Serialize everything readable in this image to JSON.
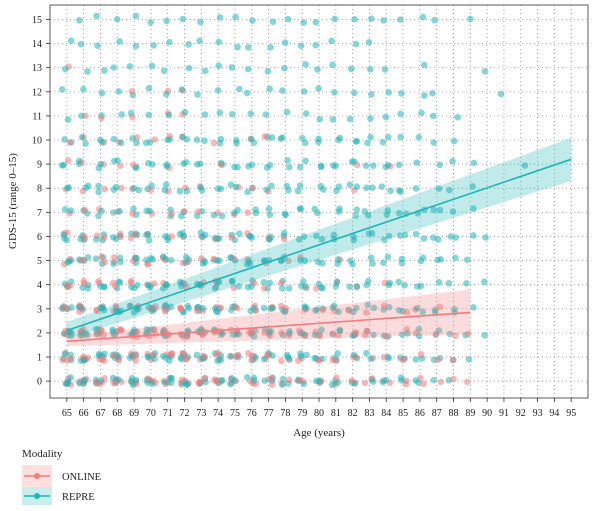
{
  "chart_data": {
    "type": "scatter",
    "xlabel": "Age (years)",
    "ylabel": "GDS-15 (range 0–15)",
    "xlim": [
      64,
      96
    ],
    "ylim": [
      -0.7,
      15.6
    ],
    "x_ticks": [
      65,
      66,
      67,
      68,
      69,
      70,
      71,
      72,
      73,
      74,
      75,
      76,
      77,
      78,
      79,
      80,
      81,
      82,
      83,
      84,
      85,
      86,
      87,
      88,
      89,
      90,
      91,
      92,
      93,
      94,
      95
    ],
    "y_ticks": [
      0,
      1,
      2,
      3,
      4,
      5,
      6,
      7,
      8,
      9,
      10,
      11,
      12,
      13,
      14,
      15
    ],
    "grid": true,
    "grid_style": "dotted",
    "legend": {
      "title": "Modality",
      "placement": "bottom-left"
    },
    "series": [
      {
        "name": "ONLINE",
        "color": "#f07c7c",
        "x_range": [
          65,
          89
        ],
        "trend": {
          "x": [
            65,
            89
          ],
          "y": [
            1.65,
            2.85
          ]
        },
        "ci_band": {
          "x": [
            65,
            89
          ],
          "lower": [
            1.45,
            1.95
          ],
          "upper": [
            1.85,
            3.8
          ]
        }
      },
      {
        "name": "REPRE",
        "color": "#1fb5b8",
        "x_range": [
          65,
          95
        ],
        "trend": {
          "x": [
            65,
            95
          ],
          "y": [
            2.1,
            9.2
          ]
        },
        "ci_band": {
          "x": [
            65,
            95
          ],
          "lower": [
            1.75,
            8.3
          ],
          "upper": [
            2.45,
            10.1
          ]
        }
      }
    ],
    "point_density": {
      "ONLINE": [
        [
          4,
          4,
          4,
          4,
          4,
          4,
          4,
          4,
          4,
          3,
          3,
          3,
          3,
          2,
          2,
          2,
          2,
          2,
          2,
          2,
          2,
          2,
          1,
          1,
          1,
          0,
          0,
          0,
          0,
          0,
          0
        ],
        [
          4,
          4,
          4,
          4,
          4,
          4,
          4,
          4,
          3,
          3,
          3,
          3,
          3,
          2,
          2,
          2,
          2,
          2,
          1,
          1,
          2,
          1,
          1,
          1,
          0,
          0,
          0,
          0,
          0,
          0,
          0
        ],
        [
          4,
          4,
          4,
          4,
          4,
          4,
          4,
          4,
          4,
          3,
          3,
          3,
          3,
          2,
          2,
          2,
          2,
          2,
          2,
          1,
          1,
          1,
          1,
          1,
          1,
          0,
          0,
          0,
          0,
          0,
          0
        ],
        [
          3,
          3,
          3,
          3,
          3,
          3,
          3,
          3,
          3,
          2,
          2,
          2,
          2,
          2,
          1,
          1,
          1,
          1,
          1,
          1,
          1,
          1,
          1,
          0,
          0,
          0,
          0,
          0,
          0,
          0,
          0
        ],
        [
          3,
          2,
          2,
          2,
          2,
          2,
          2,
          2,
          2,
          2,
          1,
          1,
          1,
          1,
          1,
          1,
          1,
          1,
          0,
          1,
          0,
          0,
          0,
          0,
          0,
          0,
          0,
          0,
          0,
          0,
          0
        ],
        [
          2,
          2,
          2,
          2,
          2,
          2,
          2,
          2,
          1,
          1,
          1,
          1,
          1,
          1,
          1,
          0,
          1,
          0,
          0,
          0,
          0,
          0,
          0,
          0,
          0,
          0,
          0,
          0,
          0,
          0,
          0
        ],
        [
          2,
          2,
          2,
          2,
          2,
          1,
          1,
          1,
          1,
          1,
          1,
          1,
          1,
          1,
          0,
          0,
          0,
          0,
          0,
          0,
          0,
          0,
          0,
          0,
          0,
          0,
          0,
          0,
          0,
          0,
          0
        ],
        [
          1,
          1,
          1,
          1,
          1,
          1,
          1,
          1,
          1,
          1,
          1,
          1,
          0,
          0,
          0,
          0,
          0,
          0,
          0,
          0,
          0,
          0,
          0,
          0,
          0,
          0,
          0,
          0,
          0,
          0,
          0
        ],
        [
          1,
          1,
          1,
          1,
          1,
          1,
          1,
          1,
          1,
          0,
          1,
          1,
          1,
          0,
          0,
          0,
          0,
          1,
          0,
          0,
          0,
          0,
          0,
          0,
          0,
          0,
          0,
          0,
          0,
          0,
          0
        ],
        [
          1,
          1,
          1,
          1,
          1,
          0,
          1,
          0,
          0,
          1,
          0,
          0,
          0,
          0,
          0,
          0,
          0,
          1,
          0,
          1,
          0,
          0,
          0,
          0,
          0,
          0,
          0,
          0,
          0,
          0,
          0
        ],
        [
          1,
          1,
          1,
          1,
          1,
          1,
          1,
          1,
          0,
          1,
          0,
          1,
          1,
          0,
          0,
          0,
          0,
          0,
          0,
          0,
          0,
          0,
          0,
          0,
          0,
          0,
          0,
          0,
          0,
          0,
          0
        ],
        [
          0,
          1,
          1,
          0,
          1,
          0,
          1,
          1,
          0,
          0,
          0,
          0,
          0,
          0,
          0,
          0,
          0,
          0,
          0,
          0,
          0,
          0,
          0,
          0,
          0,
          0,
          0,
          0,
          0,
          0,
          0
        ],
        [
          0,
          0,
          0,
          0,
          1,
          0,
          1,
          1,
          0,
          0,
          0,
          0,
          0,
          0,
          0,
          0,
          0,
          0,
          0,
          0,
          0,
          0,
          0,
          0,
          0,
          0,
          0,
          0,
          0,
          0,
          0
        ],
        [
          1,
          0,
          0,
          0,
          0,
          0,
          0,
          0,
          0,
          0,
          0,
          0,
          0,
          0,
          0,
          0,
          0,
          0,
          0,
          0,
          0,
          0,
          0,
          0,
          0,
          0,
          0,
          0,
          0,
          0,
          0
        ],
        [
          0,
          0,
          0,
          0,
          0,
          0,
          0,
          0,
          0,
          0,
          0,
          0,
          0,
          0,
          0,
          0,
          0,
          0,
          0,
          0,
          0,
          0,
          0,
          0,
          0,
          0,
          0,
          0,
          0,
          0,
          0
        ],
        [
          0,
          0,
          0,
          0,
          0,
          0,
          0,
          0,
          0,
          0,
          0,
          0,
          0,
          0,
          0,
          0,
          0,
          0,
          0,
          0,
          0,
          0,
          0,
          0,
          0,
          0,
          0,
          0,
          0,
          0,
          0
        ]
      ],
      "REPRE": [
        [
          4,
          4,
          4,
          4,
          4,
          4,
          4,
          4,
          4,
          4,
          3,
          3,
          3,
          3,
          3,
          3,
          3,
          2,
          2,
          2,
          2,
          2,
          1,
          1,
          0,
          0,
          0,
          0,
          0,
          0,
          0
        ],
        [
          4,
          4,
          4,
          4,
          4,
          4,
          4,
          4,
          4,
          4,
          3,
          3,
          3,
          3,
          3,
          3,
          3,
          2,
          2,
          2,
          2,
          2,
          2,
          1,
          1,
          0,
          0,
          0,
          0,
          0,
          0
        ],
        [
          4,
          4,
          4,
          4,
          4,
          4,
          4,
          4,
          4,
          4,
          3,
          3,
          3,
          3,
          3,
          3,
          3,
          3,
          2,
          2,
          2,
          2,
          2,
          1,
          1,
          1,
          0,
          0,
          0,
          0,
          0
        ],
        [
          4,
          4,
          4,
          4,
          4,
          4,
          4,
          4,
          4,
          4,
          3,
          3,
          3,
          3,
          3,
          3,
          3,
          3,
          2,
          2,
          2,
          2,
          2,
          2,
          1,
          0,
          0,
          0,
          0,
          0,
          0
        ],
        [
          3,
          3,
          3,
          3,
          3,
          3,
          3,
          3,
          3,
          3,
          3,
          3,
          3,
          3,
          3,
          3,
          2,
          2,
          2,
          2,
          2,
          2,
          1,
          1,
          1,
          1,
          0,
          0,
          0,
          0,
          0
        ],
        [
          3,
          3,
          3,
          3,
          3,
          3,
          3,
          3,
          3,
          3,
          3,
          3,
          3,
          3,
          2,
          2,
          2,
          2,
          2,
          2,
          2,
          2,
          2,
          1,
          1,
          0,
          0,
          0,
          0,
          0,
          0
        ],
        [
          3,
          3,
          3,
          3,
          3,
          3,
          3,
          3,
          3,
          3,
          3,
          3,
          3,
          2,
          2,
          2,
          2,
          2,
          2,
          2,
          2,
          2,
          2,
          2,
          1,
          1,
          0,
          0,
          0,
          0,
          0
        ],
        [
          2,
          2,
          2,
          2,
          2,
          2,
          2,
          2,
          2,
          2,
          2,
          2,
          2,
          2,
          2,
          2,
          2,
          2,
          2,
          2,
          2,
          2,
          2,
          1,
          1,
          0,
          0,
          0,
          0,
          0,
          0
        ],
        [
          2,
          2,
          2,
          2,
          2,
          2,
          2,
          2,
          2,
          2,
          2,
          2,
          2,
          2,
          2,
          2,
          2,
          2,
          2,
          2,
          2,
          1,
          1,
          1,
          1,
          0,
          0,
          0,
          0,
          0,
          0
        ],
        [
          2,
          2,
          2,
          2,
          2,
          2,
          2,
          2,
          2,
          2,
          2,
          2,
          2,
          2,
          2,
          2,
          2,
          2,
          2,
          2,
          1,
          1,
          1,
          1,
          1,
          0,
          0,
          1,
          0,
          0,
          0
        ],
        [
          2,
          2,
          2,
          2,
          2,
          2,
          2,
          2,
          2,
          2,
          2,
          2,
          2,
          2,
          2,
          2,
          2,
          2,
          2,
          2,
          1,
          1,
          1,
          1,
          0,
          0,
          0,
          0,
          0,
          0,
          0
        ],
        [
          1,
          1,
          1,
          1,
          1,
          1,
          1,
          1,
          1,
          1,
          1,
          1,
          1,
          1,
          1,
          1,
          1,
          1,
          1,
          1,
          1,
          1,
          1,
          1,
          0,
          0,
          0,
          0,
          0,
          0,
          0
        ],
        [
          1,
          1,
          1,
          1,
          1,
          1,
          1,
          1,
          1,
          1,
          1,
          1,
          1,
          1,
          1,
          1,
          1,
          1,
          1,
          1,
          1,
          1,
          1,
          0,
          0,
          0,
          1,
          0,
          0,
          0,
          0
        ],
        [
          1,
          1,
          1,
          1,
          1,
          1,
          1,
          1,
          1,
          1,
          1,
          1,
          1,
          1,
          1,
          1,
          1,
          1,
          1,
          1,
          0,
          1,
          0,
          0,
          0,
          1,
          0,
          0,
          0,
          0,
          0
        ],
        [
          1,
          1,
          1,
          1,
          1,
          1,
          1,
          1,
          1,
          1,
          1,
          1,
          1,
          1,
          1,
          1,
          1,
          1,
          1,
          0,
          0,
          0,
          0,
          0,
          0,
          0,
          0,
          0,
          0,
          0,
          0
        ],
        [
          0,
          1,
          1,
          1,
          1,
          1,
          1,
          1,
          1,
          1,
          1,
          1,
          1,
          1,
          1,
          1,
          1,
          1,
          1,
          1,
          1,
          1,
          1,
          0,
          1,
          0,
          0,
          0,
          0,
          0,
          0
        ]
      ]
    }
  }
}
